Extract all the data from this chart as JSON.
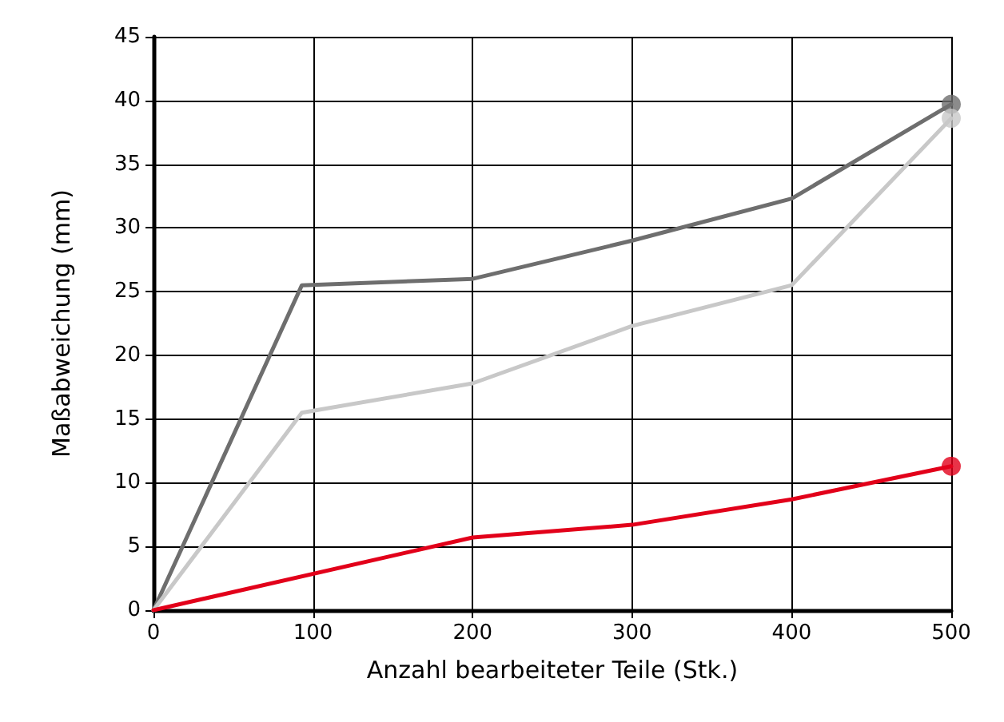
{
  "chart_data": {
    "type": "line",
    "xlabel": "Anzahl bearbeiteter Teile (Stk.)",
    "ylabel": "Maßabweichung (mm)",
    "xlim": [
      0,
      500
    ],
    "xticks": [
      0,
      100,
      200,
      300,
      400,
      500
    ],
    "ylim": [
      0,
      45
    ],
    "yticks": [
      0,
      5,
      10,
      15,
      20,
      25,
      30,
      35,
      40,
      45
    ],
    "grid": true,
    "line_style": "solid",
    "series": [
      {
        "color": "#6e6e6e",
        "x": [
          0,
          93,
          200,
          300,
          400,
          500
        ],
        "values": [
          0,
          25.5,
          26,
          29,
          32.3,
          39.7
        ]
      },
      {
        "color": "#c8c8c8",
        "x": [
          0,
          93,
          200,
          300,
          400,
          500
        ],
        "values": [
          0,
          15.5,
          17.8,
          22.3,
          25.5,
          38.6
        ]
      },
      {
        "color": "#e2001a",
        "x": [
          0,
          200,
          300,
          400,
          500
        ],
        "values": [
          0,
          5.7,
          6.7,
          8.7,
          11.3
        ]
      },
      {
        "type": "scatter",
        "color": "#6e6e6e",
        "x": [
          500
        ],
        "values": [
          39.7
        ]
      },
      {
        "type": "scatter",
        "color": "#c8c8c8",
        "x": [
          500
        ],
        "values": [
          38.6
        ]
      },
      {
        "type": "scatter",
        "color": "#e2001a",
        "x": [
          500
        ],
        "values": [
          11.3
        ]
      }
    ]
  }
}
